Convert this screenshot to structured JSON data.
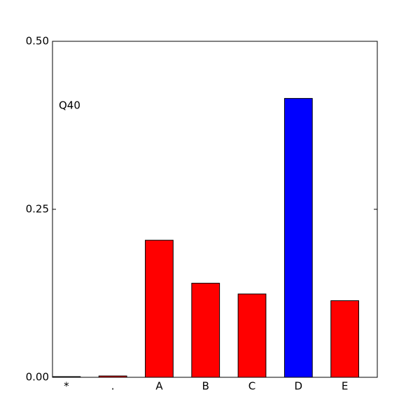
{
  "chart_data": {
    "type": "bar",
    "annotation": "Q40",
    "categories": [
      "*",
      ".",
      "A",
      "B",
      "C",
      "D",
      "E"
    ],
    "values": [
      0.001,
      0.002,
      0.204,
      0.14,
      0.124,
      0.415,
      0.114
    ],
    "colors": [
      "#ff0000",
      "#ff0000",
      "#ff0000",
      "#ff0000",
      "#ff0000",
      "#0000ff",
      "#ff0000"
    ],
    "ylim": [
      0,
      0.5
    ],
    "yticks": [
      {
        "value": 0,
        "label": "0.00"
      },
      {
        "value": 0.25,
        "label": "0.25"
      },
      {
        "value": 0.5,
        "label": "0.50"
      }
    ]
  }
}
